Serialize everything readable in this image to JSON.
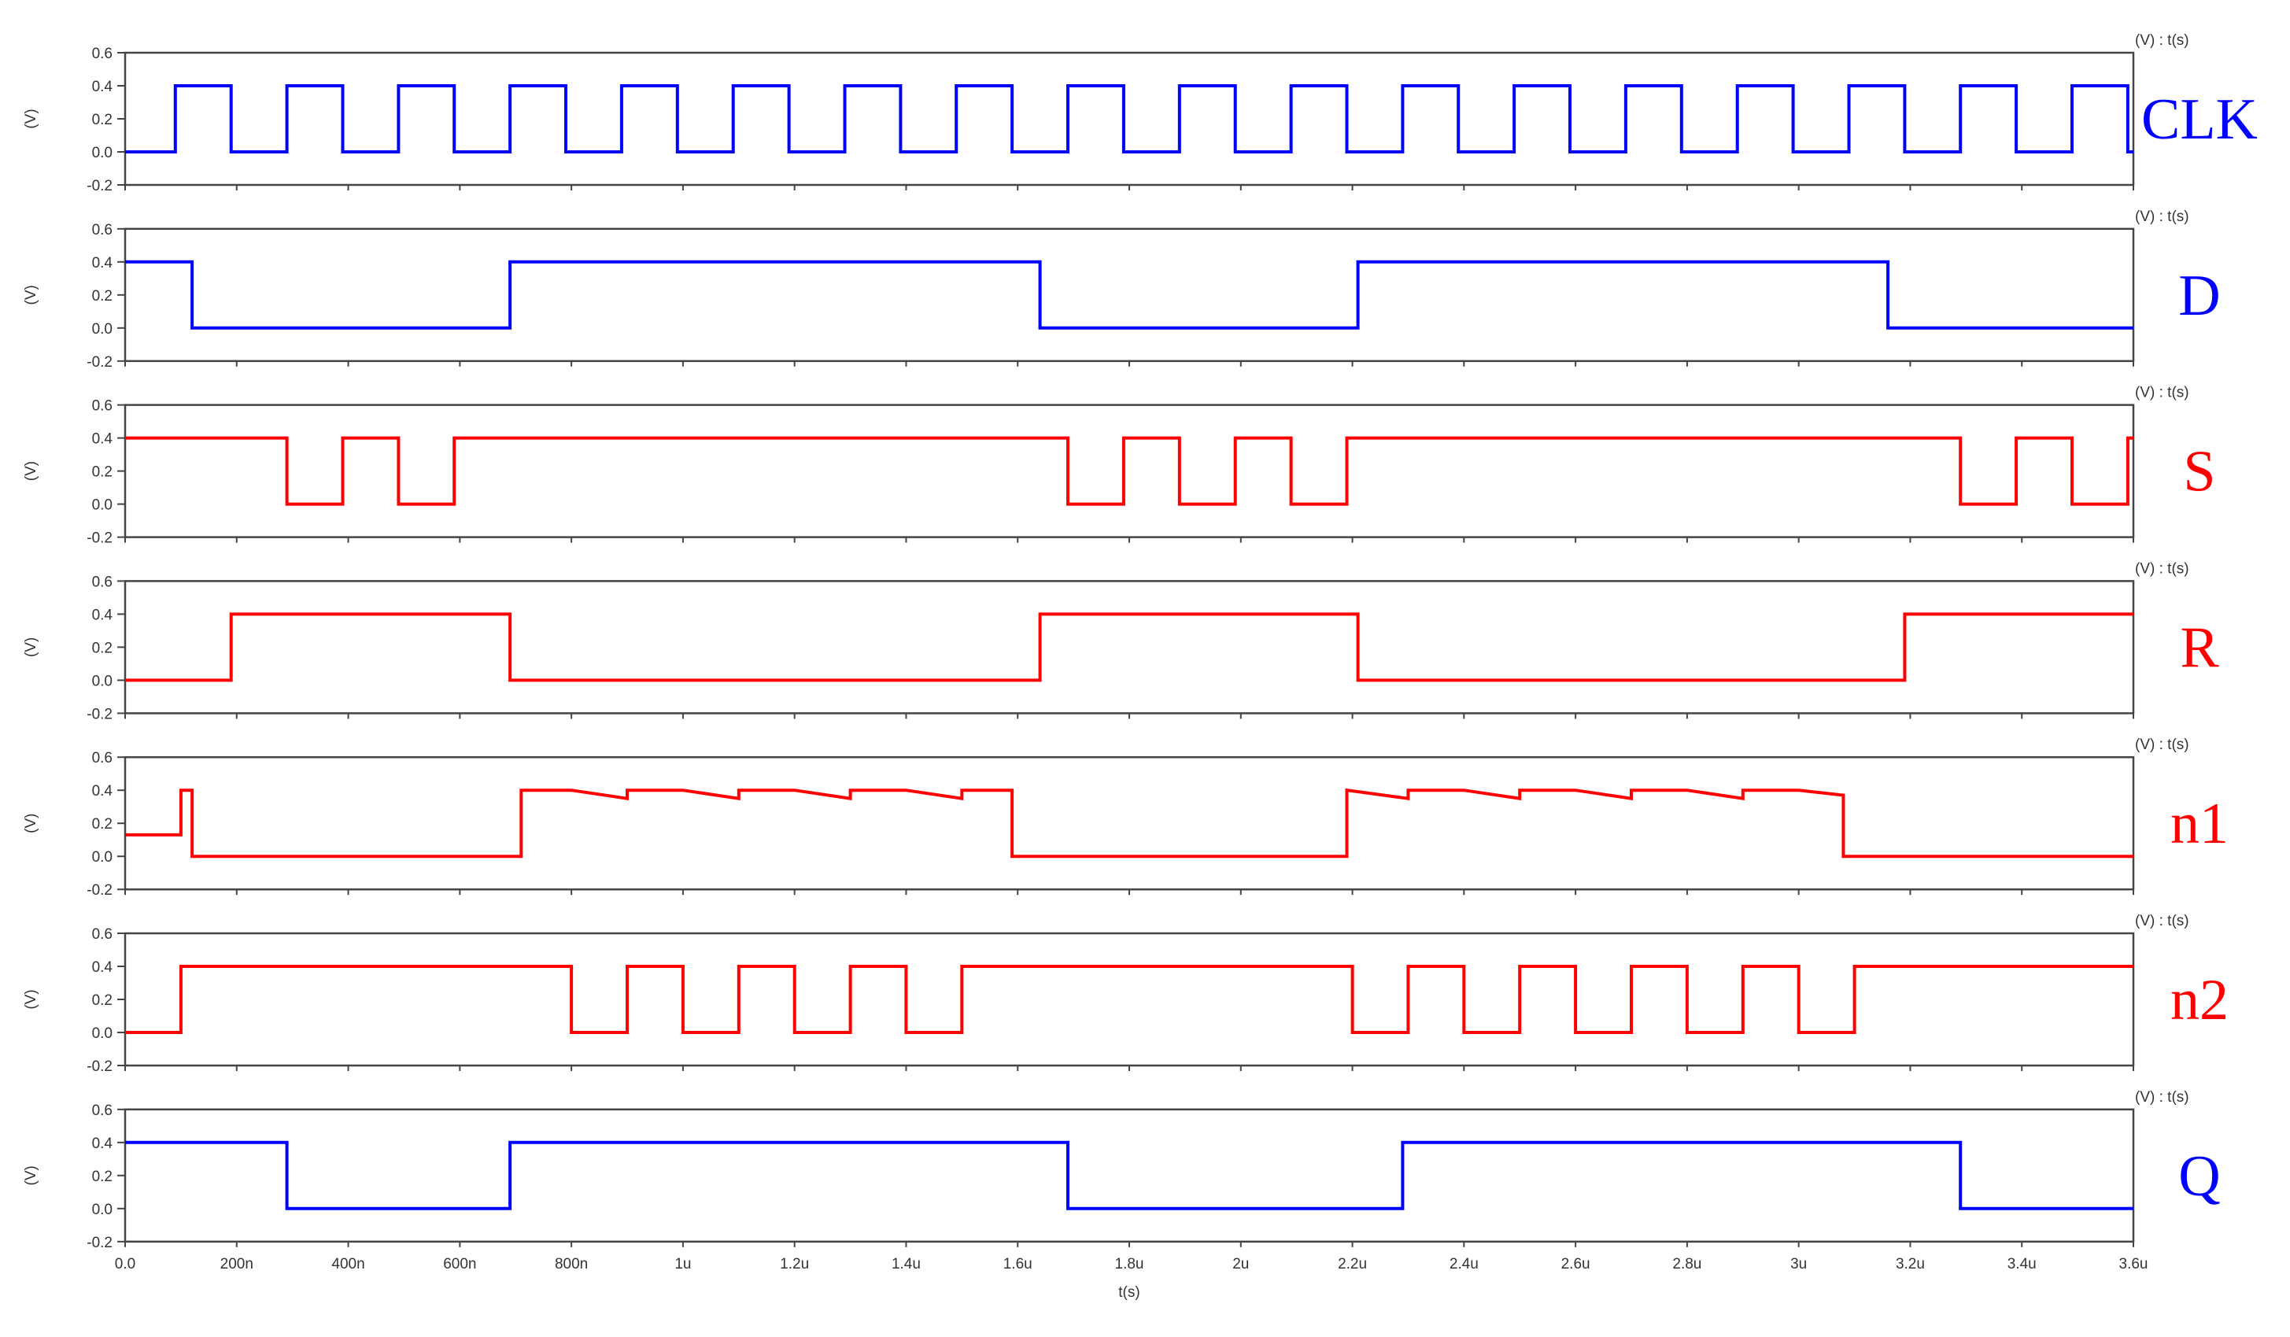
{
  "chart_data": {
    "type": "line",
    "xlabel": "t(s)",
    "xlim": [
      0,
      3.6e-06
    ],
    "x_ticks": [
      {
        "v": 0,
        "label": "0.0"
      },
      {
        "v": 2e-07,
        "label": "200n"
      },
      {
        "v": 4e-07,
        "label": "400n"
      },
      {
        "v": 6e-07,
        "label": "600n"
      },
      {
        "v": 8e-07,
        "label": "800n"
      },
      {
        "v": 1e-06,
        "label": "1u"
      },
      {
        "v": 1.2e-06,
        "label": "1.2u"
      },
      {
        "v": 1.4e-06,
        "label": "1.4u"
      },
      {
        "v": 1.6e-06,
        "label": "1.6u"
      },
      {
        "v": 1.8e-06,
        "label": "1.8u"
      },
      {
        "v": 2e-06,
        "label": "2u"
      },
      {
        "v": 2.2e-06,
        "label": "2.2u"
      },
      {
        "v": 2.4e-06,
        "label": "2.4u"
      },
      {
        "v": 2.6e-06,
        "label": "2.6u"
      },
      {
        "v": 2.8e-06,
        "label": "2.8u"
      },
      {
        "v": 3e-06,
        "label": "3u"
      },
      {
        "v": 3.2e-06,
        "label": "3.2u"
      },
      {
        "v": 3.4e-06,
        "label": "3.4u"
      },
      {
        "v": 3.6e-06,
        "label": "3.6u"
      }
    ],
    "ylabel": "(V)",
    "ylim": [
      -0.2,
      0.6
    ],
    "y_ticks": [
      {
        "v": 0.6,
        "label": "0.6"
      },
      {
        "v": 0.4,
        "label": "0.4"
      },
      {
        "v": 0.2,
        "label": "0.2"
      },
      {
        "v": 0.0,
        "label": "0.0"
      },
      {
        "v": -0.2,
        "label": "-0.2"
      }
    ],
    "panel_unit_label": "(V) : t(s)",
    "series": [
      {
        "name": "CLK",
        "color": "#0000ff",
        "points": [
          [
            0,
            0
          ],
          [
            9e-08,
            0
          ],
          [
            9e-08,
            0.4
          ],
          [
            1.9e-07,
            0.4
          ],
          [
            1.9e-07,
            0
          ],
          [
            2.9e-07,
            0
          ],
          [
            2.9e-07,
            0.4
          ],
          [
            3.9e-07,
            0.4
          ],
          [
            3.9e-07,
            0
          ],
          [
            4.9e-07,
            0
          ],
          [
            4.9e-07,
            0.4
          ],
          [
            5.9e-07,
            0.4
          ],
          [
            5.9e-07,
            0
          ],
          [
            6.9e-07,
            0
          ],
          [
            6.9e-07,
            0.4
          ],
          [
            7.9e-07,
            0.4
          ],
          [
            7.9e-07,
            0
          ],
          [
            8.9e-07,
            0
          ],
          [
            8.9e-07,
            0.4
          ],
          [
            9.9e-07,
            0.4
          ],
          [
            9.9e-07,
            0
          ],
          [
            1.09e-06,
            0
          ],
          [
            1.09e-06,
            0.4
          ],
          [
            1.19e-06,
            0.4
          ],
          [
            1.19e-06,
            0
          ],
          [
            1.29e-06,
            0
          ],
          [
            1.29e-06,
            0.4
          ],
          [
            1.39e-06,
            0.4
          ],
          [
            1.39e-06,
            0
          ],
          [
            1.49e-06,
            0
          ],
          [
            1.49e-06,
            0.4
          ],
          [
            1.59e-06,
            0.4
          ],
          [
            1.59e-06,
            0
          ],
          [
            1.69e-06,
            0
          ],
          [
            1.69e-06,
            0.4
          ],
          [
            1.79e-06,
            0.4
          ],
          [
            1.79e-06,
            0
          ],
          [
            1.89e-06,
            0
          ],
          [
            1.89e-06,
            0.4
          ],
          [
            1.99e-06,
            0.4
          ],
          [
            1.99e-06,
            0
          ],
          [
            2.09e-06,
            0
          ],
          [
            2.09e-06,
            0.4
          ],
          [
            2.19e-06,
            0.4
          ],
          [
            2.19e-06,
            0
          ],
          [
            2.29e-06,
            0
          ],
          [
            2.29e-06,
            0.4
          ],
          [
            2.39e-06,
            0.4
          ],
          [
            2.39e-06,
            0
          ],
          [
            2.49e-06,
            0
          ],
          [
            2.49e-06,
            0.4
          ],
          [
            2.59e-06,
            0.4
          ],
          [
            2.59e-06,
            0
          ],
          [
            2.69e-06,
            0
          ],
          [
            2.69e-06,
            0.4
          ],
          [
            2.79e-06,
            0.4
          ],
          [
            2.79e-06,
            0
          ],
          [
            2.89e-06,
            0
          ],
          [
            2.89e-06,
            0.4
          ],
          [
            2.99e-06,
            0.4
          ],
          [
            2.99e-06,
            0
          ],
          [
            3.09e-06,
            0
          ],
          [
            3.09e-06,
            0.4
          ],
          [
            3.19e-06,
            0.4
          ],
          [
            3.19e-06,
            0
          ],
          [
            3.29e-06,
            0
          ],
          [
            3.29e-06,
            0.4
          ],
          [
            3.39e-06,
            0.4
          ],
          [
            3.39e-06,
            0
          ],
          [
            3.49e-06,
            0
          ],
          [
            3.49e-06,
            0.4
          ],
          [
            3.59e-06,
            0.4
          ],
          [
            3.59e-06,
            0
          ],
          [
            3.6e-06,
            0
          ]
        ]
      },
      {
        "name": "D",
        "color": "#0000ff",
        "points": [
          [
            0,
            0.4
          ],
          [
            1.2e-07,
            0.4
          ],
          [
            1.2e-07,
            0
          ],
          [
            6.9e-07,
            0
          ],
          [
            6.9e-07,
            0.4
          ],
          [
            1.64e-06,
            0.4
          ],
          [
            1.64e-06,
            0
          ],
          [
            2.21e-06,
            0
          ],
          [
            2.21e-06,
            0.4
          ],
          [
            3.16e-06,
            0.4
          ],
          [
            3.16e-06,
            0
          ],
          [
            3.6e-06,
            0
          ]
        ]
      },
      {
        "name": "S",
        "color": "#ff0000",
        "points": [
          [
            0,
            0.4
          ],
          [
            2.9e-07,
            0.4
          ],
          [
            2.9e-07,
            0
          ],
          [
            3.9e-07,
            0
          ],
          [
            3.9e-07,
            0.4
          ],
          [
            4.9e-07,
            0.4
          ],
          [
            4.9e-07,
            0
          ],
          [
            5.9e-07,
            0
          ],
          [
            5.9e-07,
            0.4
          ],
          [
            1.69e-06,
            0.4
          ],
          [
            1.69e-06,
            0
          ],
          [
            1.79e-06,
            0
          ],
          [
            1.79e-06,
            0.4
          ],
          [
            1.89e-06,
            0.4
          ],
          [
            1.89e-06,
            0
          ],
          [
            1.99e-06,
            0
          ],
          [
            1.99e-06,
            0.4
          ],
          [
            2.09e-06,
            0.4
          ],
          [
            2.09e-06,
            0
          ],
          [
            2.19e-06,
            0
          ],
          [
            2.19e-06,
            0.4
          ],
          [
            3.29e-06,
            0.4
          ],
          [
            3.29e-06,
            0
          ],
          [
            3.39e-06,
            0
          ],
          [
            3.39e-06,
            0.4
          ],
          [
            3.49e-06,
            0.4
          ],
          [
            3.49e-06,
            0
          ],
          [
            3.59e-06,
            0
          ],
          [
            3.59e-06,
            0.4
          ],
          [
            3.6e-06,
            0.4
          ]
        ]
      },
      {
        "name": "R",
        "color": "#ff0000",
        "points": [
          [
            0,
            0
          ],
          [
            1.9e-07,
            0
          ],
          [
            1.9e-07,
            0.4
          ],
          [
            6.9e-07,
            0.4
          ],
          [
            6.9e-07,
            0
          ],
          [
            1.64e-06,
            0
          ],
          [
            1.64e-06,
            0.4
          ],
          [
            2.21e-06,
            0.4
          ],
          [
            2.21e-06,
            0
          ],
          [
            3.19e-06,
            0
          ],
          [
            3.19e-06,
            0.4
          ],
          [
            3.6e-06,
            0.4
          ]
        ]
      },
      {
        "name": "n1",
        "color": "#ff0000",
        "points": [
          [
            0,
            0.13
          ],
          [
            1e-07,
            0.13
          ],
          [
            1e-07,
            0.4
          ],
          [
            1.2e-07,
            0.4
          ],
          [
            1.2e-07,
            0
          ],
          [
            7.1e-07,
            0
          ],
          [
            7.1e-07,
            0.4
          ],
          [
            8e-07,
            0.4
          ],
          [
            9e-07,
            0.35
          ],
          [
            9e-07,
            0.4
          ],
          [
            1e-06,
            0.4
          ],
          [
            1.1e-06,
            0.35
          ],
          [
            1.1e-06,
            0.4
          ],
          [
            1.2e-06,
            0.4
          ],
          [
            1.3e-06,
            0.35
          ],
          [
            1.3e-06,
            0.4
          ],
          [
            1.4e-06,
            0.4
          ],
          [
            1.5e-06,
            0.35
          ],
          [
            1.5e-06,
            0.4
          ],
          [
            1.59e-06,
            0.4
          ],
          [
            1.59e-06,
            0
          ],
          [
            2.19e-06,
            0
          ],
          [
            2.19e-06,
            0.4
          ],
          [
            2.3e-06,
            0.35
          ],
          [
            2.3e-06,
            0.4
          ],
          [
            2.4e-06,
            0.4
          ],
          [
            2.5e-06,
            0.35
          ],
          [
            2.5e-06,
            0.4
          ],
          [
            2.6e-06,
            0.4
          ],
          [
            2.7e-06,
            0.35
          ],
          [
            2.7e-06,
            0.4
          ],
          [
            2.8e-06,
            0.4
          ],
          [
            2.9e-06,
            0.35
          ],
          [
            2.9e-06,
            0.4
          ],
          [
            3e-06,
            0.4
          ],
          [
            3.08e-06,
            0.37
          ],
          [
            3.08e-06,
            0
          ],
          [
            3.6e-06,
            0
          ]
        ]
      },
      {
        "name": "n2",
        "color": "#ff0000",
        "points": [
          [
            0,
            0
          ],
          [
            1e-07,
            0
          ],
          [
            1e-07,
            0.4
          ],
          [
            8e-07,
            0.4
          ],
          [
            8e-07,
            0
          ],
          [
            9e-07,
            0
          ],
          [
            9e-07,
            0.4
          ],
          [
            1e-06,
            0.4
          ],
          [
            1e-06,
            0
          ],
          [
            1.1e-06,
            0
          ],
          [
            1.1e-06,
            0.4
          ],
          [
            1.2e-06,
            0.4
          ],
          [
            1.2e-06,
            0
          ],
          [
            1.3e-06,
            0
          ],
          [
            1.3e-06,
            0.4
          ],
          [
            1.4e-06,
            0.4
          ],
          [
            1.4e-06,
            0
          ],
          [
            1.5e-06,
            0
          ],
          [
            1.5e-06,
            0.4
          ],
          [
            2.2e-06,
            0.4
          ],
          [
            2.2e-06,
            0
          ],
          [
            2.3e-06,
            0
          ],
          [
            2.3e-06,
            0.4
          ],
          [
            2.4e-06,
            0.4
          ],
          [
            2.4e-06,
            0
          ],
          [
            2.5e-06,
            0
          ],
          [
            2.5e-06,
            0.4
          ],
          [
            2.6e-06,
            0.4
          ],
          [
            2.6e-06,
            0
          ],
          [
            2.7e-06,
            0
          ],
          [
            2.7e-06,
            0.4
          ],
          [
            2.8e-06,
            0.4
          ],
          [
            2.8e-06,
            0
          ],
          [
            2.9e-06,
            0
          ],
          [
            2.9e-06,
            0.4
          ],
          [
            3e-06,
            0.4
          ],
          [
            3e-06,
            0
          ],
          [
            3.1e-06,
            0
          ],
          [
            3.1e-06,
            0.4
          ],
          [
            3.6e-06,
            0.4
          ]
        ]
      },
      {
        "name": "Q",
        "color": "#0000ff",
        "points": [
          [
            0,
            0.4
          ],
          [
            2.9e-07,
            0.4
          ],
          [
            2.9e-07,
            0
          ],
          [
            6.9e-07,
            0
          ],
          [
            6.9e-07,
            0.4
          ],
          [
            1.69e-06,
            0.4
          ],
          [
            1.69e-06,
            0
          ],
          [
            2.29e-06,
            0
          ],
          [
            2.29e-06,
            0.4
          ],
          [
            3.29e-06,
            0.4
          ],
          [
            3.29e-06,
            0
          ],
          [
            3.6e-06,
            0
          ]
        ]
      }
    ]
  }
}
